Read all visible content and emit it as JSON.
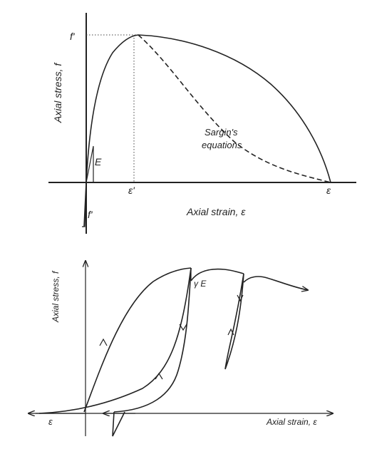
{
  "colors": {
    "ink": "#222222",
    "background": "#ffffff"
  },
  "top_diagram": {
    "y_axis_label": "Axial stress, f",
    "x_axis_label": "Axial strain, ε",
    "peak_stress_label": "f'",
    "peak_strain_label": "ε'",
    "ultimate_strain_label": "ε",
    "modulus_label": "E",
    "tensile_strength_label": "f'",
    "dashed_curve_label_line1": "Sargin's",
    "dashed_curve_label_line2": "equations"
  },
  "bottom_diagram": {
    "y_axis_label": "Axial stress, f",
    "x_axis_label": "Axial strain, ε",
    "origin_strain_label": "ε",
    "reloading_modulus_label": "γ  E"
  }
}
